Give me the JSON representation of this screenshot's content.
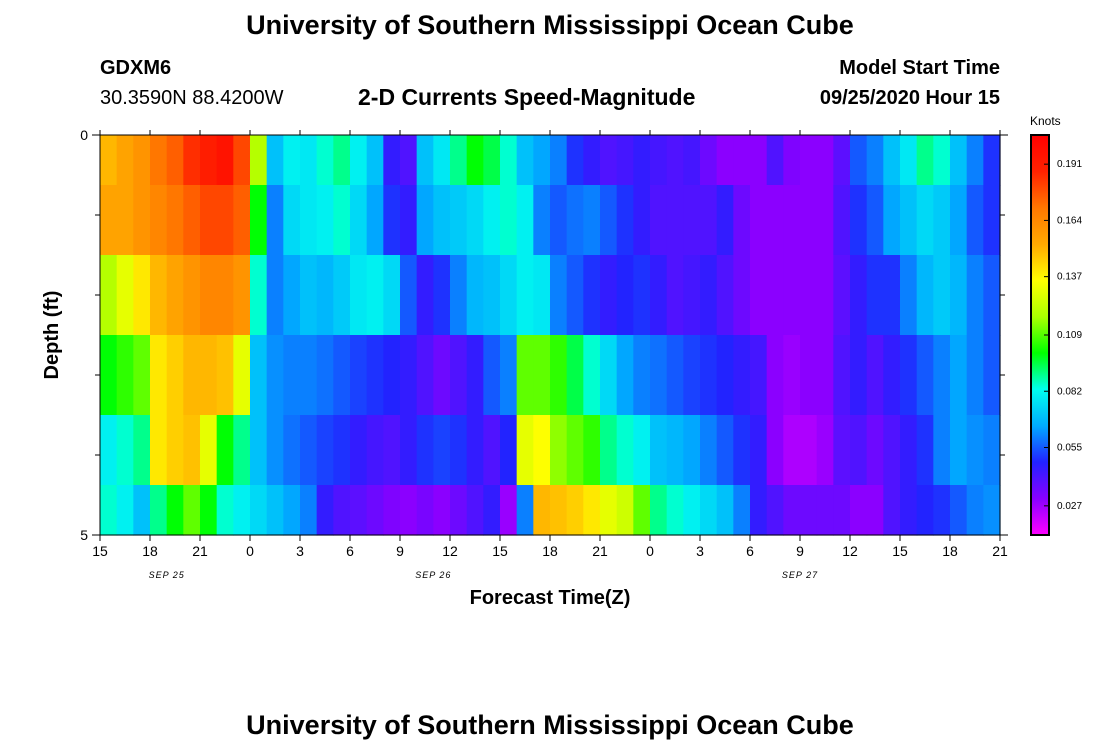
{
  "header": {
    "title": "University of Southern Mississippi Ocean Cube",
    "station_id": "GDXM6",
    "station_coords": "30.3590N 88.4200W",
    "plot_title": "2-D Currents Speed-Magnitude",
    "start_label": "Model Start Time",
    "start_value": "09/25/2020 Hour 15"
  },
  "footer": {
    "title": "University of Southern Mississippi Ocean Cube"
  },
  "chart_data": {
    "type": "heatmap",
    "title": "2-D Currents Speed-Magnitude",
    "xlabel": "Forecast Time(Z)",
    "ylabel": "Depth (ft)",
    "x_tick_labels": [
      "15",
      "18",
      "21",
      "0",
      "3",
      "6",
      "9",
      "12",
      "15",
      "18",
      "21",
      "0",
      "3",
      "6",
      "9",
      "12",
      "15",
      "18",
      "21"
    ],
    "date_labels": [
      {
        "text": "SEP 25",
        "hour_index": 4
      },
      {
        "text": "SEP 26",
        "hour_index": 20
      },
      {
        "text": "SEP 27",
        "hour_index": 42
      }
    ],
    "y_tick_labels": [
      "0",
      "5"
    ],
    "ylim": [
      0,
      5
    ],
    "hours": 54,
    "units": "Knots",
    "colorbar": {
      "ticks": [
        "0.191",
        "0.164",
        "0.137",
        "0.109",
        "0.082",
        "0.055",
        "0.027"
      ],
      "stops": [
        "#ff00ff",
        "#8800ff",
        "#2222ff",
        "#00aaff",
        "#00ffee",
        "#00ff00",
        "#aaff00",
        "#ffff00",
        "#ffaa00",
        "#ff7700",
        "#ff2200",
        "#ff0000"
      ]
    },
    "depth_rows": [
      {
        "depth_ft": 0.25,
        "values": [
          0.15,
          0.155,
          0.16,
          0.17,
          0.175,
          0.185,
          0.19,
          0.195,
          0.18,
          0.12,
          0.07,
          0.08,
          0.078,
          0.085,
          0.09,
          0.08,
          0.07,
          0.045,
          0.04,
          0.07,
          0.078,
          0.09,
          0.1,
          0.095,
          0.085,
          0.07,
          0.065,
          0.06,
          0.05,
          0.045,
          0.04,
          0.042,
          0.045,
          0.042,
          0.04,
          0.042,
          0.035,
          0.03,
          0.03,
          0.03,
          0.04,
          0.032,
          0.03,
          0.03,
          0.038,
          0.055,
          0.06,
          0.07,
          0.078,
          0.09,
          0.085,
          0.07,
          0.06,
          0.05
        ]
      },
      {
        "depth_ft": 1.0,
        "values": [
          0.155,
          0.155,
          0.16,
          0.165,
          0.17,
          0.175,
          0.18,
          0.18,
          0.175,
          0.1,
          0.06,
          0.075,
          0.078,
          0.08,
          0.085,
          0.075,
          0.065,
          0.05,
          0.045,
          0.065,
          0.07,
          0.072,
          0.075,
          0.08,
          0.085,
          0.08,
          0.06,
          0.055,
          0.058,
          0.06,
          0.055,
          0.05,
          0.045,
          0.04,
          0.04,
          0.04,
          0.04,
          0.045,
          0.035,
          0.03,
          0.03,
          0.03,
          0.03,
          0.03,
          0.04,
          0.05,
          0.055,
          0.065,
          0.07,
          0.075,
          0.072,
          0.065,
          0.055,
          0.05
        ]
      },
      {
        "depth_ft": 2.0,
        "values": [
          0.12,
          0.13,
          0.14,
          0.15,
          0.155,
          0.16,
          0.165,
          0.165,
          0.16,
          0.085,
          0.06,
          0.065,
          0.07,
          0.068,
          0.072,
          0.078,
          0.08,
          0.075,
          0.055,
          0.045,
          0.05,
          0.06,
          0.068,
          0.07,
          0.075,
          0.08,
          0.078,
          0.06,
          0.055,
          0.05,
          0.045,
          0.048,
          0.05,
          0.045,
          0.04,
          0.042,
          0.045,
          0.04,
          0.035,
          0.03,
          0.03,
          0.03,
          0.03,
          0.03,
          0.038,
          0.045,
          0.05,
          0.05,
          0.06,
          0.068,
          0.072,
          0.068,
          0.06,
          0.055
        ]
      },
      {
        "depth_ft": 3.0,
        "values": [
          0.1,
          0.105,
          0.11,
          0.14,
          0.145,
          0.15,
          0.15,
          0.148,
          0.13,
          0.07,
          0.062,
          0.06,
          0.06,
          0.058,
          0.055,
          0.052,
          0.05,
          0.048,
          0.045,
          0.04,
          0.035,
          0.04,
          0.045,
          0.055,
          0.06,
          0.11,
          0.11,
          0.105,
          0.095,
          0.085,
          0.075,
          0.065,
          0.06,
          0.058,
          0.055,
          0.052,
          0.05,
          0.048,
          0.045,
          0.042,
          0.03,
          0.028,
          0.03,
          0.03,
          0.04,
          0.045,
          0.04,
          0.045,
          0.05,
          0.055,
          0.06,
          0.065,
          0.06,
          0.055
        ]
      },
      {
        "depth_ft": 4.0,
        "values": [
          0.08,
          0.085,
          0.09,
          0.14,
          0.145,
          0.148,
          0.13,
          0.1,
          0.09,
          0.07,
          0.062,
          0.058,
          0.055,
          0.052,
          0.05,
          0.045,
          0.042,
          0.04,
          0.045,
          0.05,
          0.052,
          0.05,
          0.045,
          0.04,
          0.048,
          0.13,
          0.135,
          0.115,
          0.11,
          0.105,
          0.09,
          0.085,
          0.08,
          0.07,
          0.068,
          0.065,
          0.06,
          0.055,
          0.05,
          0.045,
          0.03,
          0.025,
          0.025,
          0.028,
          0.038,
          0.04,
          0.035,
          0.04,
          0.045,
          0.05,
          0.06,
          0.065,
          0.062,
          0.06
        ]
      },
      {
        "depth_ft": 4.75,
        "values": [
          0.085,
          0.08,
          0.07,
          0.09,
          0.1,
          0.11,
          0.1,
          0.085,
          0.08,
          0.075,
          0.07,
          0.065,
          0.06,
          0.045,
          0.04,
          0.038,
          0.035,
          0.032,
          0.03,
          0.033,
          0.03,
          0.035,
          0.04,
          0.045,
          0.028,
          0.06,
          0.15,
          0.148,
          0.145,
          0.14,
          0.13,
          0.125,
          0.11,
          0.09,
          0.085,
          0.08,
          0.075,
          0.07,
          0.06,
          0.045,
          0.04,
          0.035,
          0.035,
          0.035,
          0.035,
          0.03,
          0.03,
          0.04,
          0.045,
          0.048,
          0.05,
          0.055,
          0.06,
          0.062
        ]
      }
    ]
  }
}
